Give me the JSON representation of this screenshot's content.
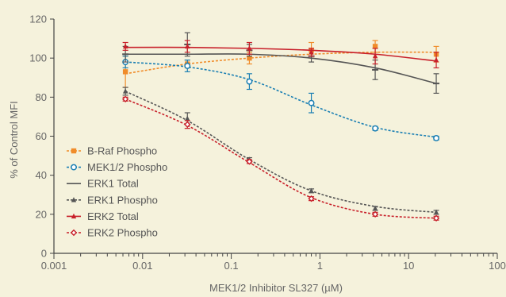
{
  "chart_data": {
    "type": "line",
    "xscale": "log",
    "xlim": [
      0.001,
      100
    ],
    "ylim": [
      0,
      120
    ],
    "xticks": [
      {
        "value": 0.001,
        "label": "0.001"
      },
      {
        "value": 0.01,
        "label": "0.01"
      },
      {
        "value": 0.1,
        "label": "0.1"
      },
      {
        "value": 1,
        "label": "1"
      },
      {
        "value": 10,
        "label": "10"
      },
      {
        "value": 100,
        "label": "100"
      }
    ],
    "yticks": [
      {
        "value": 0,
        "label": "0"
      },
      {
        "value": 20,
        "label": "20"
      },
      {
        "value": 40,
        "label": "40"
      },
      {
        "value": 60,
        "label": "60"
      },
      {
        "value": 80,
        "label": "80"
      },
      {
        "value": 100,
        "label": "100"
      },
      {
        "value": 120,
        "label": "120"
      }
    ],
    "xlabel": "MEK1/2 Inhibitor SL327 (µM)",
    "ylabel": "% of Control MFI",
    "grid": false,
    "legend_position": "bottom-left",
    "x": [
      0.0064,
      0.032,
      0.16,
      0.8,
      4.2,
      20.5
    ],
    "series": [
      {
        "name": "B-Raf Phospho",
        "color": "#f08c2a",
        "marker": "square",
        "dashed": true,
        "values": [
          93,
          97,
          100,
          104,
          106,
          102
        ],
        "err": [
          8,
          2,
          3,
          4,
          3,
          4
        ],
        "fit": [
          92,
          97,
          100,
          102,
          103,
          103
        ]
      },
      {
        "name": "MEK1/2 Phospho",
        "color": "#1a7fb3",
        "marker": "circle",
        "dashed": true,
        "values": [
          98,
          96,
          88,
          77,
          64,
          59
        ],
        "err": [
          3,
          3,
          4,
          5,
          1,
          1
        ],
        "fit": [
          98,
          95.5,
          89,
          76,
          64.5,
          59.5
        ]
      },
      {
        "name": "ERK1 Total",
        "color": "#555555",
        "marker": "none",
        "dashed": false,
        "values": [
          102,
          107,
          104,
          101,
          94,
          87
        ],
        "err": [
          4,
          6,
          3,
          3,
          5,
          5
        ],
        "fit": [
          102,
          102,
          102,
          100,
          95,
          87
        ]
      },
      {
        "name": "ERK1 Phospho",
        "color": "#555555",
        "marker": "triangle",
        "dashed": true,
        "values": [
          83,
          69,
          48,
          32,
          23,
          21
        ],
        "err": [
          2,
          3,
          1,
          1,
          1,
          1
        ],
        "fit": [
          83,
          68,
          48,
          32,
          24,
          21
        ]
      },
      {
        "name": "ERK2 Total",
        "color": "#c8202a",
        "marker": "triangle",
        "dashed": false,
        "values": [
          106,
          106,
          105,
          103,
          101,
          99
        ],
        "err": [
          2,
          3,
          3,
          2,
          4,
          4
        ],
        "fit": [
          105.5,
          105.5,
          105,
          104,
          102,
          98.5
        ]
      },
      {
        "name": "ERK2 Phospho",
        "color": "#c8202a",
        "marker": "diamond",
        "dashed": true,
        "values": [
          79,
          66,
          47,
          28,
          20,
          18
        ],
        "err": [
          1,
          2,
          1,
          1,
          1,
          1
        ],
        "fit": [
          79,
          65.5,
          46.5,
          28.5,
          20,
          18
        ]
      }
    ]
  }
}
